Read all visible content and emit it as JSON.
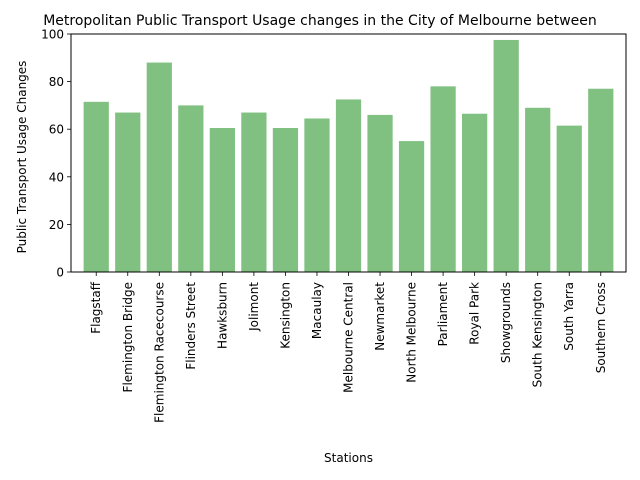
{
  "chart_data": {
    "type": "bar",
    "title": "Metropolitan Public Transport Usage changes in the City of Melbourne between",
    "xlabel": "Stations",
    "ylabel": "Public Transport Usage Changes",
    "ylim": [
      0,
      100
    ],
    "yticks": [
      0,
      20,
      40,
      60,
      80,
      100
    ],
    "grid": false,
    "bar_color": "#80c080",
    "categories": [
      "Flagstaff",
      "Flemington Bridge",
      "Flemington Racecourse",
      "Flinders Street",
      "Hawksburn",
      "Jolimont",
      "Kensington",
      "Macaulay",
      "Melbourne Central",
      "Newmarket",
      "North Melbourne",
      "Parliament",
      "Royal Park",
      "Showgrounds",
      "South Kensington",
      "South Yarra",
      "Southern Cross"
    ],
    "values": [
      71.5,
      67,
      88,
      70,
      60.5,
      67,
      60.5,
      64.5,
      72.5,
      66,
      55,
      78,
      66.5,
      97.5,
      69,
      61.5,
      77
    ]
  }
}
